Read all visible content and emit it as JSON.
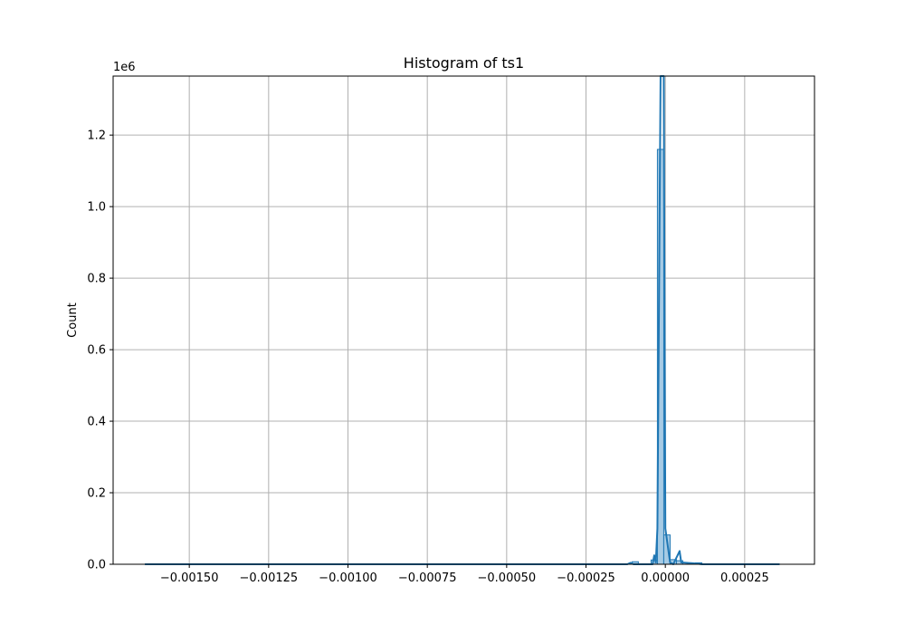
{
  "chart_data": {
    "type": "bar",
    "title": "Histogram of ts1",
    "xlabel": "",
    "ylabel": "Count",
    "y_offset_text": "1e6",
    "xlim": [
      -0.00174,
      0.00047
    ],
    "ylim": [
      0,
      1.365
    ],
    "x_ticks": [
      -0.0015,
      -0.00125,
      -0.001,
      -0.00075,
      -0.0005,
      -0.00025,
      0.0,
      0.00025
    ],
    "x_tick_labels": [
      "−0.00150",
      "−0.00125",
      "−0.00100",
      "−0.00075",
      "−0.00050",
      "−0.00025",
      "0.00000",
      "0.00025"
    ],
    "y_ticks": [
      0.0,
      0.2,
      0.4,
      0.6,
      0.8,
      1.0,
      1.2
    ],
    "y_tick_labels": [
      "0.0",
      "0.2",
      "0.4",
      "0.6",
      "0.8",
      "1.0",
      "1.2"
    ],
    "grid": true,
    "bins": [
      {
        "x0": -0.000105,
        "x1": -8.5e-05,
        "count": 0.007
      },
      {
        "x0": -4.5e-05,
        "x1": -2.5e-05,
        "count": 0.012
      },
      {
        "x0": -2.5e-05,
        "x1": -5e-06,
        "count": 1.16
      },
      {
        "x0": -5e-06,
        "x1": 1.5e-05,
        "count": 0.082
      },
      {
        "x0": 1.5e-05,
        "x1": 3.5e-05,
        "count": 0.013
      },
      {
        "x0": 3.5e-05,
        "x1": 5.5e-05,
        "count": 0.01
      },
      {
        "x0": 9.5e-05,
        "x1": 0.000115,
        "count": 0.004
      }
    ],
    "kde_points": [
      [
        -0.00164,
        0.0
      ],
      [
        -0.00012,
        0.0
      ],
      [
        -0.00011,
        0.004
      ],
      [
        -0.0001,
        0.0
      ],
      [
        -4e-05,
        0.0
      ],
      [
        -3.5e-05,
        0.025
      ],
      [
        -3e-05,
        0.005
      ],
      [
        -2.5e-05,
        0.1
      ],
      [
        -1.5e-05,
        1.365
      ],
      [
        -1e-05,
        1.365
      ],
      [
        -5e-06,
        1.365
      ],
      [
        0.0,
        0.1
      ],
      [
        1.5e-05,
        0.005
      ],
      [
        2.5e-05,
        0.0
      ],
      [
        4.5e-05,
        0.037
      ],
      [
        5e-05,
        0.005
      ],
      [
        0.0001,
        0.002
      ],
      [
        0.000115,
        0.0
      ],
      [
        0.00036,
        0.0
      ]
    ],
    "colors": {
      "bar_fill": "#a6cbe5",
      "bar_edge": "#1f77b4",
      "kde_line": "#1f77b4",
      "grid": "#b0b0b0"
    }
  }
}
